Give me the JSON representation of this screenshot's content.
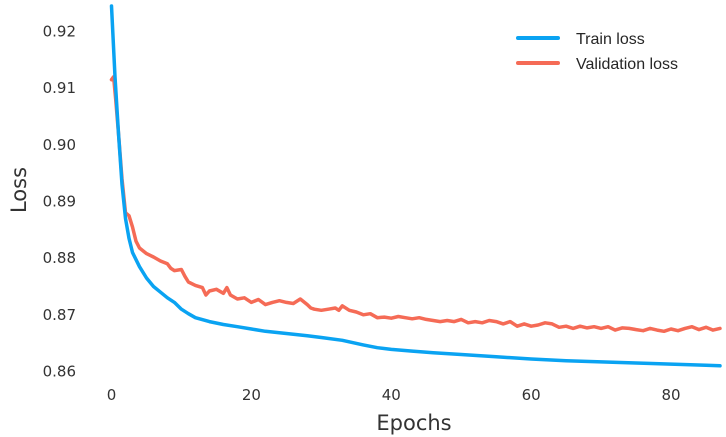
{
  "chart_data": {
    "type": "line",
    "title": "",
    "xlabel": "Epochs",
    "ylabel": "Loss",
    "xlim": [
      -1.5,
      87
    ],
    "ylim": [
      0.8585,
      0.9245
    ],
    "x_ticks": [
      0,
      20,
      40,
      60,
      80
    ],
    "y_ticks": [
      0.86,
      0.87,
      0.88,
      0.89,
      0.9,
      0.91,
      0.92
    ],
    "y_tick_labels": [
      "0.86",
      "0.87",
      "0.88",
      "0.89",
      "0.90",
      "0.91",
      "0.92"
    ],
    "grid": false,
    "legend_position": "top-right",
    "series": [
      {
        "name": "Train loss",
        "color": "#0aa3f2",
        "points": [
          [
            0,
            0.9245
          ],
          [
            0.5,
            0.912
          ],
          [
            1,
            0.902
          ],
          [
            1.5,
            0.893
          ],
          [
            2,
            0.887
          ],
          [
            2.5,
            0.8835
          ],
          [
            3,
            0.881
          ],
          [
            4,
            0.8785
          ],
          [
            5,
            0.8765
          ],
          [
            6,
            0.875
          ],
          [
            7,
            0.874
          ],
          [
            8,
            0.873
          ],
          [
            9,
            0.8722
          ],
          [
            10,
            0.871
          ],
          [
            11,
            0.8702
          ],
          [
            12,
            0.8695
          ],
          [
            14,
            0.8688
          ],
          [
            16,
            0.8683
          ],
          [
            18,
            0.8679
          ],
          [
            20,
            0.8675
          ],
          [
            22,
            0.8671
          ],
          [
            25,
            0.8667
          ],
          [
            28,
            0.8663
          ],
          [
            30,
            0.866
          ],
          [
            33,
            0.8655
          ],
          [
            36,
            0.8647
          ],
          [
            38,
            0.8642
          ],
          [
            40,
            0.8639
          ],
          [
            43,
            0.8636
          ],
          [
            46,
            0.8633
          ],
          [
            50,
            0.863
          ],
          [
            55,
            0.8626
          ],
          [
            60,
            0.8622
          ],
          [
            65,
            0.8619
          ],
          [
            70,
            0.8617
          ],
          [
            75,
            0.8615
          ],
          [
            80,
            0.8613
          ],
          [
            85,
            0.8611
          ],
          [
            87,
            0.861
          ]
        ]
      },
      {
        "name": "Validation loss",
        "color": "#f56b56",
        "points": [
          [
            0,
            0.9115
          ],
          [
            0.3,
            0.912
          ],
          [
            0.6,
            0.908
          ],
          [
            1,
            0.902
          ],
          [
            1.5,
            0.894
          ],
          [
            2,
            0.888
          ],
          [
            2.5,
            0.8875
          ],
          [
            3,
            0.8855
          ],
          [
            3.5,
            0.883
          ],
          [
            4,
            0.8818
          ],
          [
            5,
            0.8808
          ],
          [
            6,
            0.8802
          ],
          [
            7,
            0.8795
          ],
          [
            8,
            0.879
          ],
          [
            8.5,
            0.8782
          ],
          [
            9,
            0.8778
          ],
          [
            10,
            0.878
          ],
          [
            10.5,
            0.8768
          ],
          [
            11,
            0.8758
          ],
          [
            12,
            0.8752
          ],
          [
            13,
            0.8748
          ],
          [
            13.5,
            0.8735
          ],
          [
            14,
            0.8742
          ],
          [
            15,
            0.8745
          ],
          [
            16,
            0.8738
          ],
          [
            16.5,
            0.8748
          ],
          [
            17,
            0.8735
          ],
          [
            18,
            0.8728
          ],
          [
            19,
            0.873
          ],
          [
            20,
            0.8722
          ],
          [
            21,
            0.8727
          ],
          [
            22,
            0.8718
          ],
          [
            23,
            0.8722
          ],
          [
            24,
            0.8725
          ],
          [
            25,
            0.8722
          ],
          [
            26,
            0.872
          ],
          [
            27,
            0.8728
          ],
          [
            28,
            0.8718
          ],
          [
            28.5,
            0.8712
          ],
          [
            29,
            0.871
          ],
          [
            30,
            0.8708
          ],
          [
            31,
            0.871
          ],
          [
            32,
            0.8712
          ],
          [
            32.5,
            0.8708
          ],
          [
            33,
            0.8716
          ],
          [
            34,
            0.8708
          ],
          [
            35,
            0.8705
          ],
          [
            36,
            0.87
          ],
          [
            37,
            0.8702
          ],
          [
            38,
            0.8695
          ],
          [
            39,
            0.8696
          ],
          [
            40,
            0.8694
          ],
          [
            41,
            0.8697
          ],
          [
            42,
            0.8695
          ],
          [
            43,
            0.8693
          ],
          [
            44,
            0.8695
          ],
          [
            45,
            0.8692
          ],
          [
            46,
            0.869
          ],
          [
            47,
            0.8688
          ],
          [
            48,
            0.869
          ],
          [
            49,
            0.8688
          ],
          [
            50,
            0.8692
          ],
          [
            51,
            0.8686
          ],
          [
            52,
            0.8688
          ],
          [
            53,
            0.8686
          ],
          [
            54,
            0.869
          ],
          [
            55,
            0.8688
          ],
          [
            56,
            0.8684
          ],
          [
            57,
            0.8688
          ],
          [
            58,
            0.868
          ],
          [
            59,
            0.8684
          ],
          [
            60,
            0.868
          ],
          [
            61,
            0.8682
          ],
          [
            62,
            0.8686
          ],
          [
            63,
            0.8684
          ],
          [
            64,
            0.8678
          ],
          [
            65,
            0.868
          ],
          [
            66,
            0.8676
          ],
          [
            67,
            0.868
          ],
          [
            68,
            0.8677
          ],
          [
            69,
            0.8679
          ],
          [
            70,
            0.8676
          ],
          [
            71,
            0.8679
          ],
          [
            72,
            0.8673
          ],
          [
            73,
            0.8677
          ],
          [
            74,
            0.8676
          ],
          [
            75,
            0.8674
          ],
          [
            76,
            0.8672
          ],
          [
            77,
            0.8676
          ],
          [
            78,
            0.8673
          ],
          [
            79,
            0.8671
          ],
          [
            80,
            0.8675
          ],
          [
            81,
            0.8672
          ],
          [
            82,
            0.8676
          ],
          [
            83,
            0.8679
          ],
          [
            84,
            0.8674
          ],
          [
            85,
            0.8678
          ],
          [
            86,
            0.8673
          ],
          [
            87,
            0.8676
          ]
        ]
      }
    ]
  }
}
